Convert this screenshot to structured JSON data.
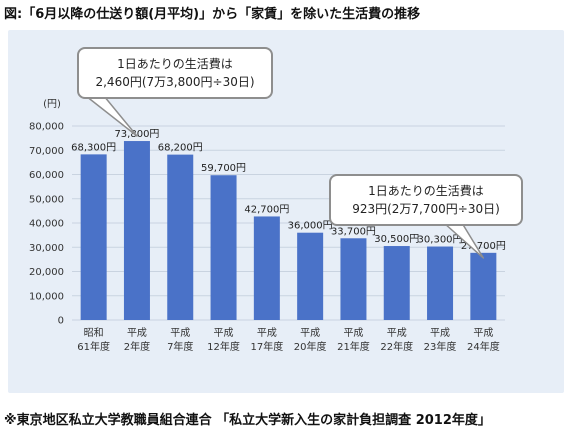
{
  "figure": {
    "title": "図:「6月以降の仕送り額(月平均)」から「家賃」を除いた生活費の推移",
    "footnote": "※東京地区私立大学教職員組合連合 「私立大学新入生の家計負担調査 2012年度」"
  },
  "chart_data": {
    "type": "bar",
    "unit_label": "(円)",
    "categories": [
      [
        "昭和",
        "61年度"
      ],
      [
        "平成",
        "2年度"
      ],
      [
        "平成",
        "7年度"
      ],
      [
        "平成",
        "12年度"
      ],
      [
        "平成",
        "17年度"
      ],
      [
        "平成",
        "20年度"
      ],
      [
        "平成",
        "21年度"
      ],
      [
        "平成",
        "22年度"
      ],
      [
        "平成",
        "23年度"
      ],
      [
        "平成",
        "24年度"
      ]
    ],
    "values": [
      68300,
      73800,
      68200,
      59700,
      42700,
      36000,
      33700,
      30500,
      30300,
      27700
    ],
    "value_labels": [
      "68,300円",
      "73,800円",
      "68,200円",
      "59,700円",
      "42,700円",
      "36,000円",
      "33,700円",
      "30,500円",
      "30,300円",
      "27,700円"
    ],
    "ylim": [
      0,
      80000
    ],
    "yticks": [
      0,
      10000,
      20000,
      30000,
      40000,
      50000,
      60000,
      70000,
      80000
    ],
    "ytick_labels": [
      "0",
      "10,000",
      "20,000",
      "30,000",
      "40,000",
      "50,000",
      "60,000",
      "70,000",
      "80,000"
    ],
    "grid": true,
    "bar_color": "#4a72c8",
    "annotations": [
      {
        "target_index": 1,
        "lines": [
          "1日あたりの生活費は",
          "2,460円(7万3,800円÷30日)"
        ]
      },
      {
        "target_index": 9,
        "lines": [
          "1日あたりの生活費は",
          "923円(2万7,700円÷30日)"
        ]
      }
    ]
  },
  "colors": {
    "panel_background": "#e7eef7",
    "gridline": "#c9d3e0",
    "axis_text": "#333333",
    "callout_border": "#8e8e8e"
  }
}
